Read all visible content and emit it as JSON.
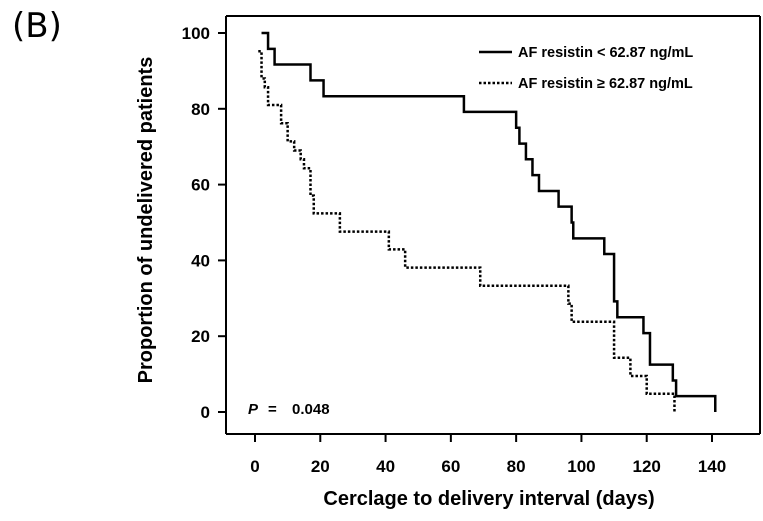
{
  "panel_label": "(B)",
  "chart_data": {
    "type": "line",
    "subtype": "kaplan-meier step",
    "xlabel": "Cerclage to delivery interval (days)",
    "ylabel": "Proportion of undelivered patients",
    "xlim": [
      0,
      140
    ],
    "ylim": [
      0,
      100
    ],
    "x_ticks": [
      "0",
      "20",
      "40",
      "60",
      "80",
      "100",
      "120",
      "140"
    ],
    "y_ticks": [
      "0",
      "20",
      "40",
      "60",
      "80",
      "100"
    ],
    "grid": false,
    "legend_position": "top-right",
    "annotation": {
      "p_label": "P",
      "p_equals": "=",
      "p_value": "0.048"
    },
    "series": [
      {
        "name": "AF resistin < 62.87 ng/mL",
        "style": "solid",
        "color": "#000000",
        "x": [
          2,
          4,
          6,
          17,
          21,
          64,
          80,
          81,
          83,
          85,
          87,
          93,
          97,
          97.5,
          98,
          107,
          110,
          111,
          113,
          119,
          121,
          128,
          129,
          141
        ],
        "y": [
          100,
          95.8,
          91.7,
          87.5,
          83.3,
          79.2,
          75,
          70.8,
          66.7,
          62.5,
          58.3,
          54.2,
          50,
          45.8,
          45.8,
          41.7,
          29.2,
          25,
          25,
          20.8,
          12.5,
          8.3,
          4.2,
          0
        ]
      },
      {
        "name": "AF resistin ≥ 62.87 ng/mL",
        "style": "dotted",
        "color": "#000000",
        "x": [
          1,
          2,
          3,
          4,
          8,
          10,
          12,
          14,
          15,
          17,
          18,
          20,
          26,
          41,
          43,
          46,
          69,
          96,
          97,
          98,
          110,
          115,
          118,
          120,
          123,
          128.5
        ],
        "y": [
          95.2,
          88,
          85.7,
          81,
          76.2,
          71.4,
          69,
          66.7,
          64.3,
          57.1,
          52.4,
          52.4,
          47.6,
          42.9,
          42.9,
          38.1,
          33.3,
          28.6,
          23.8,
          23.8,
          14.3,
          9.5,
          9.5,
          4.8,
          4.8,
          0
        ]
      }
    ]
  }
}
